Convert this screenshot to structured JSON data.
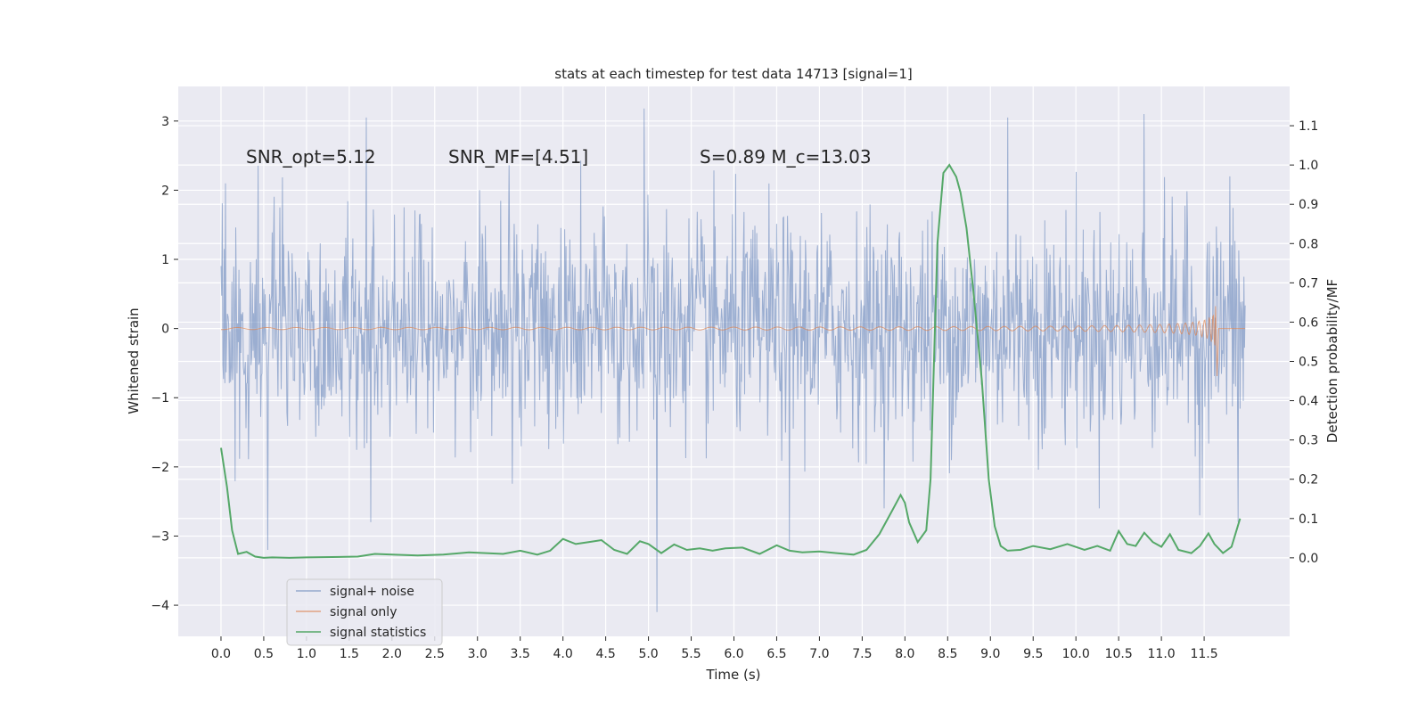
{
  "chart_data": {
    "type": "line",
    "title": "stats at each timestep for test data 14713 [signal=1]",
    "xlabel": "Time (s)",
    "ylabel_left": "Whitened strain",
    "ylabel_right": "Detection probability/MF",
    "xlim": [
      -0.5,
      12.5
    ],
    "ylim_left": [
      -4.45,
      3.5
    ],
    "ylim_right": [
      -0.2,
      1.2
    ],
    "x_ticks": [
      0.0,
      0.5,
      1.0,
      1.5,
      2.0,
      2.5,
      3.0,
      3.5,
      4.0,
      4.5,
      5.0,
      5.5,
      6.0,
      6.5,
      7.0,
      7.5,
      8.0,
      8.5,
      9.0,
      9.5,
      10.0,
      10.5,
      11.0,
      11.5
    ],
    "x_tick_labels": [
      "0.0",
      "0.5",
      "1.0",
      "1.5",
      "2.0",
      "2.5",
      "3.0",
      "3.5",
      "4.0",
      "4.5",
      "5.0",
      "5.5",
      "6.0",
      "6.5",
      "7.0",
      "7.5",
      "8.0",
      "8.5",
      "9.0",
      "9.5",
      "10.0",
      "10.5",
      "11.0",
      "11.5"
    ],
    "y_left_ticks": [
      3,
      2,
      1,
      0,
      -1,
      -2,
      -3,
      -4
    ],
    "y_left_tick_labels": [
      "3",
      "2",
      "1",
      "0",
      "−1",
      "−2",
      "−3",
      "−4"
    ],
    "y_right_ticks": [
      1.1,
      1.0,
      0.9,
      0.8,
      0.7,
      0.6,
      0.5,
      0.4,
      0.3,
      0.2,
      0.1,
      0.0
    ],
    "y_right_tick_labels": [
      "1.1",
      "1.0",
      "0.9",
      "0.8",
      "0.7",
      "0.6",
      "0.5",
      "0.4",
      "0.3",
      "0.2",
      "0.1",
      "0.0"
    ],
    "grid": true,
    "legend_position": "lower-left",
    "annotations": [
      {
        "text": "SNR_opt=5.12",
        "x": 0.2,
        "y": 2.45
      },
      {
        "text": "SNR_MF=[4.51]",
        "x": 2.6,
        "y": 2.45
      },
      {
        "text": "S=0.89   M_c=13.03",
        "x": 5.6,
        "y": 2.45
      }
    ],
    "series": [
      {
        "name": "signal+ noise",
        "color": "#4c72b0",
        "axis": "left",
        "t_range": [
          0.0,
          11.98
        ],
        "noise_std": 0.8,
        "spikes": [
          {
            "x": 0.05,
            "y": 2.1
          },
          {
            "x": 0.55,
            "y": -3.2
          },
          {
            "x": 1.7,
            "y": 3.05
          },
          {
            "x": 1.75,
            "y": -2.8
          },
          {
            "x": 4.95,
            "y": 3.18
          },
          {
            "x": 5.1,
            "y": -4.1
          },
          {
            "x": 6.65,
            "y": -3.2
          },
          {
            "x": 9.2,
            "y": 3.05
          },
          {
            "x": 10.8,
            "y": 3.1
          },
          {
            "x": 11.45,
            "y": -2.7
          },
          {
            "x": 11.8,
            "y": 2.2
          },
          {
            "x": 11.9,
            "y": -2.8
          }
        ]
      },
      {
        "name": "signal only",
        "color": "#dd8452",
        "axis": "left",
        "t_range": [
          0.0,
          11.65
        ],
        "amplitude_end": 0.7
      },
      {
        "name": "signal statistics",
        "color": "#55a868",
        "axis": "right",
        "x": [
          0.0,
          0.07,
          0.13,
          0.2,
          0.3,
          0.4,
          0.5,
          0.6,
          0.8,
          1.0,
          1.3,
          1.6,
          1.8,
          2.0,
          2.3,
          2.6,
          2.9,
          3.1,
          3.3,
          3.5,
          3.7,
          3.85,
          4.0,
          4.15,
          4.3,
          4.45,
          4.6,
          4.75,
          4.9,
          5.0,
          5.15,
          5.3,
          5.45,
          5.6,
          5.75,
          5.9,
          6.1,
          6.3,
          6.5,
          6.65,
          6.8,
          7.0,
          7.2,
          7.4,
          7.55,
          7.7,
          7.85,
          7.95,
          8.0,
          8.05,
          8.15,
          8.25,
          8.3,
          8.38,
          8.45,
          8.52,
          8.6,
          8.65,
          8.72,
          8.8,
          8.9,
          8.98,
          9.05,
          9.12,
          9.2,
          9.35,
          9.5,
          9.7,
          9.9,
          10.1,
          10.25,
          10.4,
          10.5,
          10.6,
          10.7,
          10.8,
          10.9,
          11.0,
          11.1,
          11.2,
          11.35,
          11.45,
          11.55,
          11.62,
          11.72,
          11.82,
          11.92
        ],
        "y": [
          0.28,
          0.18,
          0.07,
          0.01,
          0.015,
          0.003,
          0.0,
          0.001,
          0.0,
          0.001,
          0.002,
          0.003,
          0.01,
          0.008,
          0.006,
          0.008,
          0.014,
          0.012,
          0.01,
          0.018,
          0.008,
          0.018,
          0.048,
          0.035,
          0.04,
          0.045,
          0.02,
          0.01,
          0.042,
          0.035,
          0.012,
          0.034,
          0.02,
          0.024,
          0.018,
          0.024,
          0.026,
          0.01,
          0.032,
          0.018,
          0.014,
          0.016,
          0.012,
          0.008,
          0.02,
          0.06,
          0.12,
          0.16,
          0.14,
          0.09,
          0.04,
          0.07,
          0.2,
          0.8,
          0.98,
          1.0,
          0.97,
          0.93,
          0.84,
          0.68,
          0.45,
          0.2,
          0.08,
          0.03,
          0.018,
          0.02,
          0.03,
          0.022,
          0.035,
          0.02,
          0.03,
          0.018,
          0.068,
          0.035,
          0.03,
          0.064,
          0.04,
          0.028,
          0.06,
          0.02,
          0.012,
          0.03,
          0.062,
          0.035,
          0.012,
          0.028,
          0.1
        ]
      }
    ]
  }
}
